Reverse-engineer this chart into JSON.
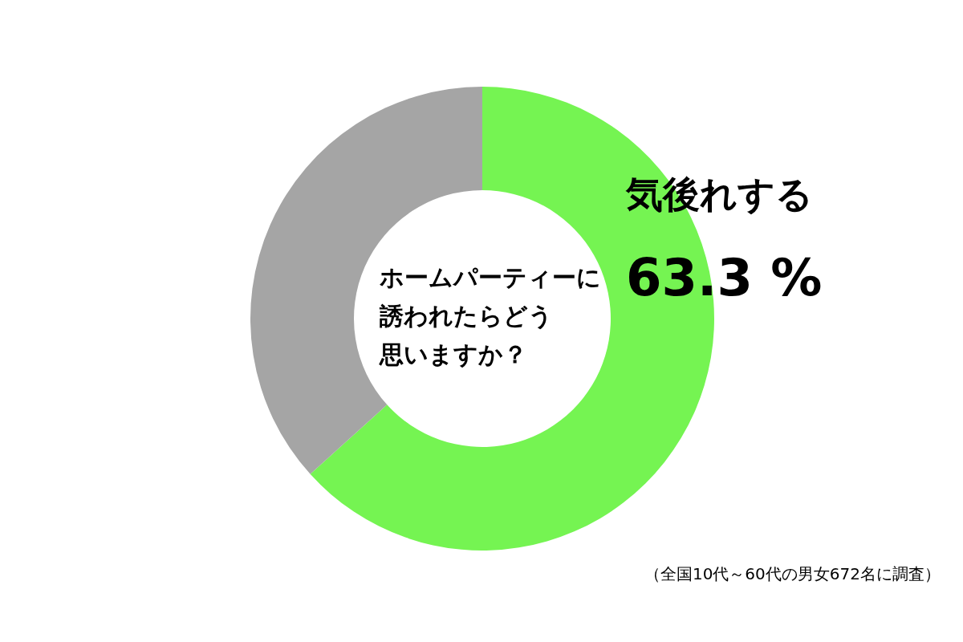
{
  "chart_data": {
    "type": "donut",
    "title": "ホームパーティーに誘われたらどう思いますか？",
    "categories": [
      "気後れする",
      null
    ],
    "values": [
      63.3,
      36.7
    ],
    "colors": [
      "#75f452",
      "#a5a5a5"
    ],
    "value_labels": [
      "63.3 %",
      null
    ],
    "annotations": [
      "（全国10代～60代の男女672名に調査）"
    ]
  }
}
